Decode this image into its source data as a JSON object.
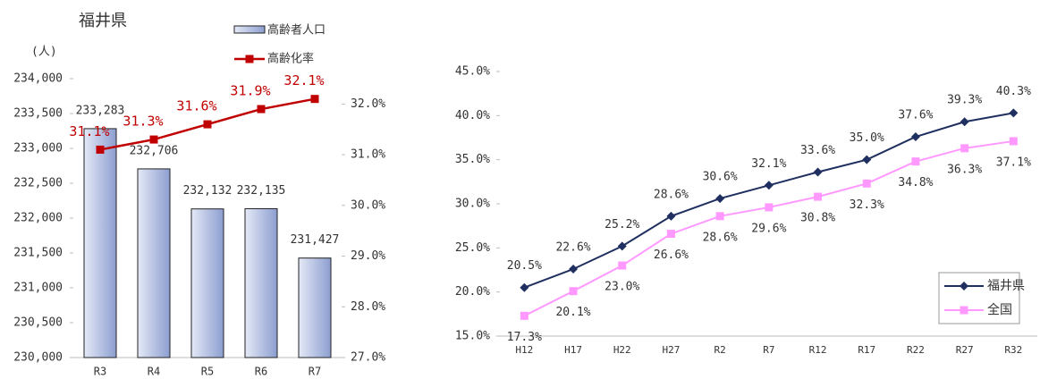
{
  "chart_data": [
    {
      "type": "bar",
      "title": "福井県",
      "y_label": "(人)",
      "categories": [
        "R3",
        "R4",
        "R5",
        "R6",
        "R7"
      ],
      "series": [
        {
          "name": "高齢者人口",
          "type": "bar",
          "color": "#9fb0da",
          "values": [
            233283,
            232706,
            232132,
            232135,
            231427
          ],
          "value_labels": [
            "233,283",
            "232,706",
            "232,132",
            "232,135",
            "231,427"
          ]
        },
        {
          "name": "高齢化率",
          "type": "line",
          "axis": "y2",
          "color": "#c00000",
          "values": [
            31.1,
            31.3,
            31.6,
            31.9,
            32.1
          ],
          "value_labels": [
            "31.1%",
            "31.3%",
            "31.6%",
            "31.9%",
            "32.1%"
          ]
        }
      ],
      "ylim": [
        230000,
        234000
      ],
      "yticks": [
        {
          "value": 230000,
          "label": "230,000"
        },
        {
          "value": 230500,
          "label": "230,500"
        },
        {
          "value": 231000,
          "label": "231,000"
        },
        {
          "value": 231500,
          "label": "231,500"
        },
        {
          "value": 232000,
          "label": "232,000"
        },
        {
          "value": 232500,
          "label": "232,500"
        },
        {
          "value": 233000,
          "label": "233,000"
        },
        {
          "value": 233500,
          "label": "233,500"
        },
        {
          "value": 234000,
          "label": "234,000"
        }
      ],
      "y2lim": [
        27,
        32.5
      ],
      "y2ticks": [
        {
          "value": 27,
          "label": "27.0%"
        },
        {
          "value": 28,
          "label": "28.0%"
        },
        {
          "value": 29,
          "label": "29.0%"
        },
        {
          "value": 30,
          "label": "30.0%"
        },
        {
          "value": 31,
          "label": "31.0%"
        },
        {
          "value": 32,
          "label": "32.0%"
        }
      ],
      "legend": "top-right"
    },
    {
      "type": "line",
      "categories": [
        "H12",
        "H17",
        "H22",
        "H27",
        "R2",
        "R7",
        "R12",
        "R17",
        "R22",
        "R27",
        "R32"
      ],
      "series": [
        {
          "name": "福井県",
          "color": "#1f2f5f",
          "values": [
            20.5,
            22.6,
            25.2,
            28.6,
            30.6,
            32.1,
            33.6,
            35.0,
            37.6,
            39.3,
            40.3
          ],
          "value_labels": [
            "20.5%",
            "22.6%",
            "25.2%",
            "28.6%",
            "30.6%",
            "32.1%",
            "33.6%",
            "35.0%",
            "37.6%",
            "39.3%",
            "40.3%"
          ]
        },
        {
          "name": "全国",
          "color": "#ff99ff",
          "values": [
            17.3,
            20.1,
            23.0,
            26.6,
            28.6,
            29.6,
            30.8,
            32.3,
            34.8,
            36.3,
            37.1
          ],
          "value_labels": [
            "17.3%",
            "20.1%",
            "23.0%",
            "26.6%",
            "28.6%",
            "29.6%",
            "30.8%",
            "32.3%",
            "34.8%",
            "36.3%",
            "37.1%"
          ]
        }
      ],
      "ylim": [
        15,
        45
      ],
      "yticks": [
        {
          "value": 15,
          "label": "15.0%"
        },
        {
          "value": 20,
          "label": "20.0%"
        },
        {
          "value": 25,
          "label": "25.0%"
        },
        {
          "value": 30,
          "label": "30.0%"
        },
        {
          "value": 35,
          "label": "35.0%"
        },
        {
          "value": 40,
          "label": "40.0%"
        },
        {
          "value": 45,
          "label": "45.0%"
        }
      ],
      "legend": "bottom-right"
    }
  ]
}
